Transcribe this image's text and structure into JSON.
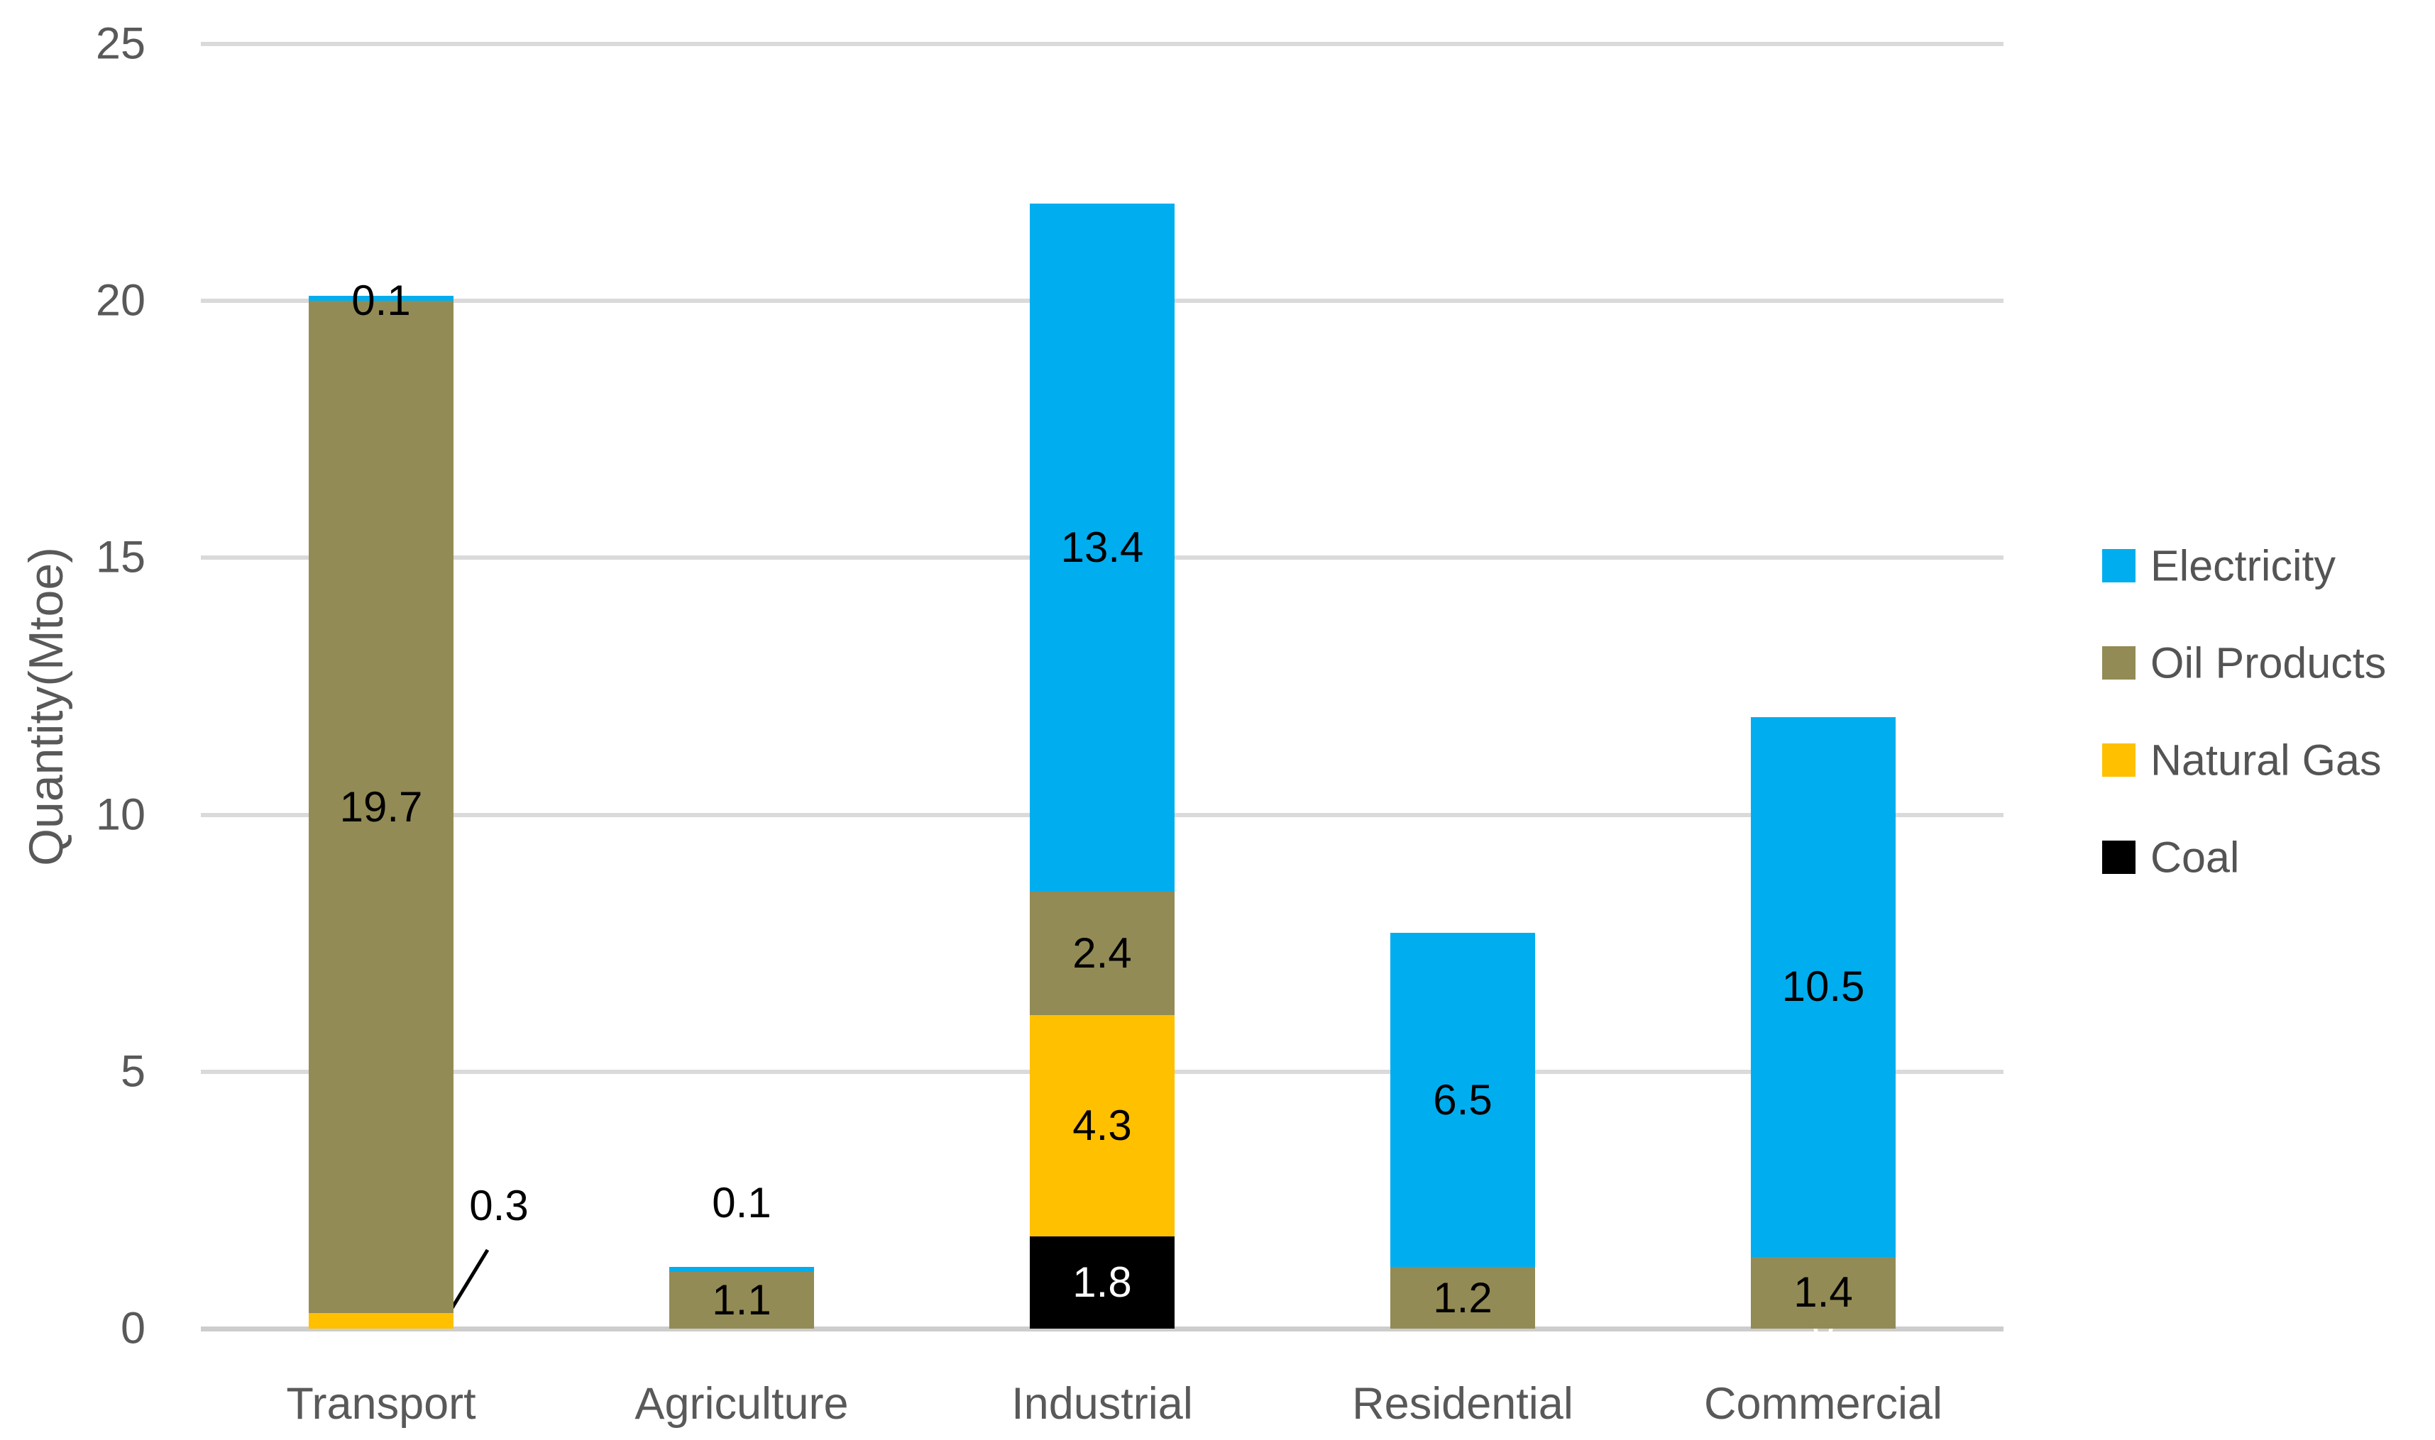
{
  "chart_data": {
    "type": "bar",
    "stacked": true,
    "title": "",
    "xlabel": "",
    "ylabel": "Quantity(Mtoe)",
    "ylim": [
      0,
      25
    ],
    "yticks": [
      0,
      5,
      10,
      15,
      20,
      25
    ],
    "grid": true,
    "legend_position": "right",
    "categories": [
      "Transport",
      "Agriculture",
      "Industrial",
      "Residential",
      "Commercial"
    ],
    "series": [
      {
        "name": "Coal",
        "color": "#000000",
        "label_color": "#ffffff",
        "values": [
          null,
          null,
          1.8,
          null,
          0
        ],
        "labels": [
          "",
          "",
          "1.8",
          "",
          "0"
        ],
        "label_pos": [
          "",
          "",
          "center",
          "",
          "baseline"
        ]
      },
      {
        "name": "Natural Gas",
        "color": "#FFC000",
        "label_color": "#000000",
        "values": [
          0.3,
          null,
          4.3,
          null,
          null
        ],
        "labels": [
          "0.3",
          "",
          "4.3",
          "",
          ""
        ],
        "label_pos": [
          "callout-right",
          "",
          "center",
          "",
          ""
        ]
      },
      {
        "name": "Oil Products",
        "color": "#938B55",
        "label_color": "#000000",
        "values": [
          19.7,
          1.1,
          2.4,
          1.2,
          1.4
        ],
        "labels": [
          "19.7",
          "1.1",
          "2.4",
          "1.2",
          "1.4"
        ],
        "label_pos": [
          "center",
          "center",
          "center",
          "center",
          "center"
        ]
      },
      {
        "name": "Electricity",
        "color": "#00AEEF",
        "label_color": "#000000",
        "values": [
          0.1,
          0.1,
          13.4,
          6.5,
          10.5
        ],
        "labels": [
          "0.1",
          "0.1",
          "13.4",
          "6.5",
          "10.5"
        ],
        "label_pos": [
          "top-straddle",
          "above",
          "center",
          "center",
          "center"
        ]
      }
    ],
    "legend": [
      "Electricity",
      "Oil Products",
      "Natural Gas",
      "Coal"
    ]
  },
  "colors": {
    "gridline": "#DADADA",
    "axis_line": "#CDCDCD",
    "axis_text": "#595959",
    "legend_text": "#545454"
  }
}
